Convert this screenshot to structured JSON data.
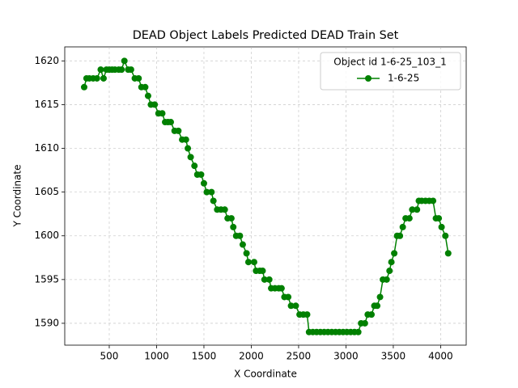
{
  "chart_data": {
    "type": "line",
    "title": "DEAD Object Labels Predicted DEAD Train Set",
    "x_label": "X Coordinate",
    "y_label": "Y Coordinate",
    "legend_title": "Object id 1-6-25_103_1",
    "legend_position": "upper right",
    "grid": true,
    "xlim": [
      30,
      4270
    ],
    "ylim": [
      1587.5,
      1621.6
    ],
    "xticks": [
      500,
      1000,
      1500,
      2000,
      2500,
      3000,
      3500,
      4000
    ],
    "yticks": [
      1590,
      1595,
      1600,
      1605,
      1610,
      1615,
      1620
    ],
    "series": [
      {
        "name": "1-6-25",
        "color": "#008000",
        "x": [
          235,
          260,
          290,
          330,
          370,
          410,
          440,
          470,
          500,
          530,
          560,
          600,
          630,
          660,
          700,
          730,
          770,
          810,
          840,
          880,
          910,
          940,
          980,
          1020,
          1060,
          1090,
          1120,
          1150,
          1190,
          1230,
          1270,
          1310,
          1330,
          1360,
          1400,
          1430,
          1470,
          1500,
          1530,
          1580,
          1600,
          1640,
          1680,
          1720,
          1750,
          1790,
          1810,
          1840,
          1880,
          1910,
          1950,
          1970,
          2030,
          2050,
          2090,
          2120,
          2140,
          2190,
          2210,
          2250,
          2290,
          2320,
          2350,
          2390,
          2420,
          2470,
          2510,
          2550,
          2590,
          2610,
          2650,
          2690,
          2730,
          2770,
          2810,
          2850,
          2890,
          2930,
          2970,
          3010,
          3050,
          3090,
          3130,
          3160,
          3200,
          3230,
          3270,
          3300,
          3330,
          3360,
          3390,
          3430,
          3460,
          3480,
          3510,
          3540,
          3570,
          3600,
          3630,
          3670,
          3700,
          3750,
          3770,
          3800,
          3840,
          3880,
          3920,
          3950,
          3980,
          4010,
          4050,
          4080
        ],
        "values": [
          1617,
          1618,
          1618,
          1618,
          1618,
          1619,
          1618,
          1619,
          1619,
          1619,
          1619,
          1619,
          1619,
          1620,
          1619,
          1619,
          1618,
          1618,
          1617,
          1617,
          1616,
          1615,
          1615,
          1614,
          1614,
          1613,
          1613,
          1613,
          1612,
          1612,
          1611,
          1611,
          1610,
          1609,
          1608,
          1607,
          1607,
          1606,
          1605,
          1605,
          1604,
          1603,
          1603,
          1603,
          1602,
          1602,
          1601,
          1600,
          1600,
          1599,
          1598,
          1597,
          1597,
          1596,
          1596,
          1596,
          1595,
          1595,
          1594,
          1594,
          1594,
          1594,
          1593,
          1593,
          1592,
          1592,
          1591,
          1591,
          1591,
          1589,
          1589,
          1589,
          1589,
          1589,
          1589,
          1589,
          1589,
          1589,
          1589,
          1589,
          1589,
          1589,
          1589,
          1590,
          1590,
          1591,
          1591,
          1592,
          1592,
          1593,
          1595,
          1595,
          1596,
          1597,
          1598,
          1600,
          1600,
          1601,
          1602,
          1602,
          1603,
          1603,
          1604,
          1604,
          1604,
          1604,
          1604,
          1602,
          1602,
          1601,
          1600,
          1598
        ]
      }
    ]
  }
}
